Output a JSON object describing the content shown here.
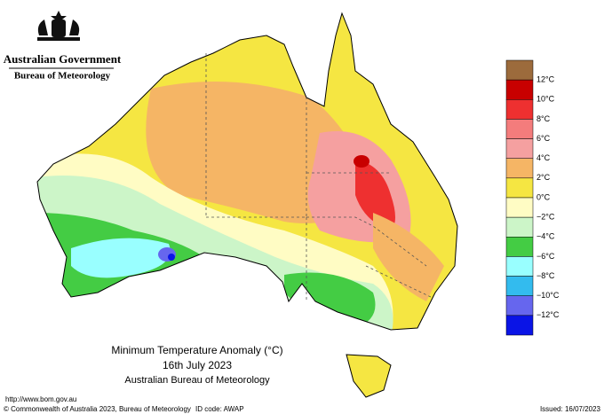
{
  "header": {
    "government": "Australian Government",
    "bureau": "Bureau of Meteorology"
  },
  "title": {
    "line1": "Minimum Temperature Anomaly (°C)",
    "line2": "16th July 2023",
    "line3": "Australian Bureau of Meteorology"
  },
  "legend": {
    "labels": [
      "12°C",
      "10°C",
      "8°C",
      "6°C",
      "4°C",
      "2°C",
      "0°C",
      "−2°C",
      "−4°C",
      "−6°C",
      "−8°C",
      "−10°C",
      "−12°C"
    ],
    "colors": [
      "#9c6b3c",
      "#c80000",
      "#ee3030",
      "#f47c7c",
      "#f5a0a0",
      "#f5b565",
      "#f5e642",
      "#fffcc4",
      "#ccf5c8",
      "#44cc44",
      "#99ffff",
      "#33bbee",
      "#6666ee",
      "#0a14e6"
    ]
  },
  "footer": {
    "url": "http://www.bom.gov.au",
    "copyright": "© Commonwealth of Australia 2023, Bureau of Meteorology",
    "id_code": "ID code: AWAP",
    "issued": "Issued: 16/07/2023"
  }
}
